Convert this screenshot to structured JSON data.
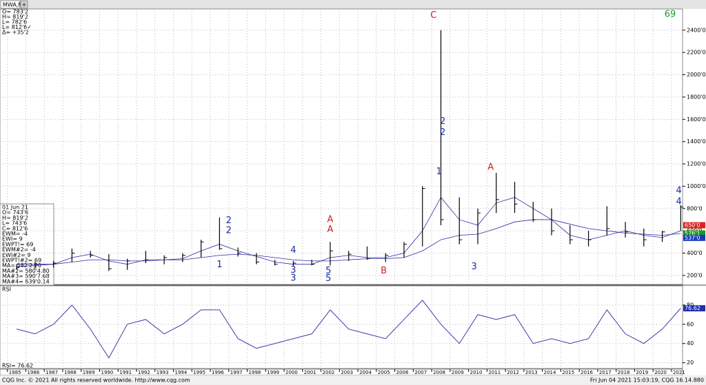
{
  "tab": "MWA,M",
  "quote_box": [
    "O=   783'2",
    "H=   819'2",
    "L=   782'6",
    "L=   812'6✓",
    "Δ=   +35'2"
  ],
  "study_box": [
    "01 Jun 21",
    "O=          743'6",
    "H=          819'2",
    "L=           743'6",
    "C=           812'6",
    "EWM=            -4",
    "EWI=              9",
    "EWPT!=          69",
    "EWM#2=          -4",
    "EWI#2=            9",
    "EWPT!#2=        69",
    "MA=        582'2.20",
    "MA#2=     580'4.80",
    "MA#3=     590'7.68",
    "MA#4=     639'0.14"
  ],
  "wave_count": "69",
  "footer_left": "CQG Inc. © 2021 All rights reserved worldwide. http://www.cqg.com",
  "footer_right": "Fri Jun 04 2021 15:03:19, CQG 16.14.880",
  "chart_data": [
    {
      "type": "ohlc",
      "x": [
        1985,
        1986,
        1987,
        1988,
        1989,
        1990,
        1991,
        1992,
        1993,
        1994,
        1995,
        1996,
        1997,
        1998,
        1999,
        2000,
        2001,
        2002,
        2003,
        2004,
        2005,
        2006,
        2007,
        2008,
        2009,
        2010,
        2011,
        2012,
        2013,
        2014,
        2015,
        2016,
        2017,
        2018,
        2019,
        2020,
        2021
      ],
      "high": [
        300,
        320,
        330,
        440,
        420,
        390,
        350,
        420,
        380,
        400,
        520,
        720,
        450,
        400,
        340,
        330,
        340,
        500,
        420,
        460,
        400,
        500,
        1000,
        2400,
        900,
        800,
        1120,
        1040,
        860,
        800,
        650,
        600,
        820,
        680,
        620,
        600,
        830
      ],
      "low": [
        250,
        260,
        270,
        320,
        360,
        240,
        250,
        310,
        300,
        320,
        360,
        430,
        370,
        300,
        290,
        280,
        290,
        290,
        330,
        340,
        320,
        360,
        460,
        650,
        480,
        480,
        760,
        760,
        680,
        560,
        480,
        460,
        560,
        540,
        460,
        500,
        600
      ],
      "close": [
        270,
        300,
        310,
        400,
        380,
        260,
        330,
        340,
        360,
        380,
        500,
        440,
        400,
        320,
        300,
        310,
        300,
        420,
        390,
        350,
        380,
        480,
        980,
        700,
        520,
        760,
        880,
        840,
        700,
        600,
        520,
        520,
        620,
        590,
        520,
        590,
        812.75
      ],
      "color": "#000000",
      "overlays": [
        {
          "color": "#2a2aa0",
          "values": [
            280,
            290,
            300,
            360,
            390,
            330,
            300,
            340,
            340,
            350,
            420,
            480,
            420,
            370,
            320,
            300,
            300,
            360,
            380,
            360,
            360,
            400,
            600,
            900,
            700,
            650,
            850,
            900,
            800,
            700,
            560,
            520,
            560,
            600,
            560,
            540,
            600
          ]
        },
        {
          "color": "#2a2aa0",
          "values": [
            300,
            300,
            300,
            320,
            340,
            340,
            330,
            330,
            340,
            340,
            360,
            380,
            390,
            380,
            360,
            340,
            330,
            330,
            340,
            350,
            350,
            360,
            420,
            520,
            560,
            570,
            620,
            680,
            700,
            700,
            660,
            620,
            600,
            580,
            570,
            560,
            576
          ]
        }
      ],
      "xlim": [
        1984.6,
        2021.6
      ],
      "ylim": [
        119,
        2590
      ],
      "yticks": [
        {
          "value": 200,
          "label": "200'0"
        },
        {
          "value": 400,
          "label": "400'0"
        },
        {
          "value": 600,
          "label": "600'0"
        },
        {
          "value": 800,
          "label": "800'0"
        },
        {
          "value": 1000,
          "label": "1000'0"
        },
        {
          "value": 1200,
          "label": "1200'0"
        },
        {
          "value": 1400,
          "label": "1400'0"
        },
        {
          "value": 1600,
          "label": "1600'0"
        },
        {
          "value": 1800,
          "label": "1800'0"
        },
        {
          "value": 2000,
          "label": "2000'0"
        },
        {
          "value": 2200,
          "label": "2200'0"
        },
        {
          "value": 2400,
          "label": "2400'0"
        }
      ],
      "price_markers": [
        {
          "value": 650,
          "label": "650'0",
          "color": "#e02020"
        },
        {
          "value": 576.125,
          "label": "576'1",
          "color": "#1a9a1a"
        },
        {
          "value": 537,
          "label": "537'0",
          "color": "#1a3ab8"
        }
      ],
      "annotations": [
        {
          "text": "C",
          "x": 2008.1,
          "y": 2530,
          "color": "#d02020"
        },
        {
          "text": "2",
          "x": 2008.6,
          "y": 1580,
          "color": "#1a2aa0"
        },
        {
          "text": "2",
          "x": 2008.6,
          "y": 1480,
          "color": "#1a2aa0"
        },
        {
          "text": "1",
          "x": 2008.4,
          "y": 1130,
          "color": "#1a2aa0"
        },
        {
          "text": "A",
          "x": 2011.2,
          "y": 1170,
          "color": "#d02020"
        },
        {
          "text": "2",
          "x": 1997.0,
          "y": 690,
          "color": "#1a2aa0"
        },
        {
          "text": "2",
          "x": 1997.0,
          "y": 600,
          "color": "#1a2aa0"
        },
        {
          "text": "1",
          "x": 1996.5,
          "y": 295,
          "color": "#1a2aa0"
        },
        {
          "text": "4",
          "x": 2000.5,
          "y": 425,
          "color": "#1a2aa0"
        },
        {
          "text": "3",
          "x": 2000.5,
          "y": 245,
          "color": "#1a2aa0"
        },
        {
          "text": "3",
          "x": 2000.5,
          "y": 175,
          "color": "#1a2aa0"
        },
        {
          "text": "A",
          "x": 2002.5,
          "y": 700,
          "color": "#d02020"
        },
        {
          "text": "A",
          "x": 2002.5,
          "y": 610,
          "color": "#d02020"
        },
        {
          "text": "5",
          "x": 2002.4,
          "y": 240,
          "color": "#1a2aa0"
        },
        {
          "text": "5",
          "x": 2002.4,
          "y": 170,
          "color": "#1a2aa0"
        },
        {
          "text": "B",
          "x": 2005.4,
          "y": 240,
          "color": "#d02020"
        },
        {
          "text": "3",
          "x": 2010.3,
          "y": 275,
          "color": "#1a2aa0"
        },
        {
          "text": "4",
          "x": 2021.4,
          "y": 960,
          "color": "#1a2aa0"
        },
        {
          "text": "4",
          "x": 2021.4,
          "y": 860,
          "color": "#1a2aa0"
        }
      ]
    },
    {
      "type": "line",
      "title": "RSI",
      "value_text": "RSI=    76.62",
      "x": [
        1985,
        1986,
        1987,
        1988,
        1989,
        1990,
        1991,
        1992,
        1993,
        1994,
        1995,
        1996,
        1997,
        1998,
        1999,
        2000,
        2001,
        2002,
        2003,
        2004,
        2005,
        2006,
        2007,
        2008,
        2009,
        2010,
        2011,
        2012,
        2013,
        2014,
        2015,
        2016,
        2017,
        2018,
        2019,
        2020,
        2021
      ],
      "values": [
        55,
        50,
        60,
        80,
        55,
        25,
        60,
        65,
        50,
        60,
        75,
        75,
        45,
        35,
        40,
        45,
        50,
        75,
        55,
        50,
        45,
        65,
        85,
        60,
        40,
        70,
        65,
        70,
        40,
        45,
        40,
        45,
        75,
        50,
        40,
        55,
        76.62
      ],
      "color": "#3a3aa8",
      "current": {
        "value": 76.62,
        "label": "76.62"
      },
      "xlim": [
        1984.6,
        2021.6
      ],
      "ylim": [
        14,
        100
      ],
      "yticks": [
        20,
        40,
        60,
        80
      ],
      "xticks": [
        1985,
        1986,
        1987,
        1988,
        1989,
        1990,
        1991,
        1992,
        1993,
        1994,
        1995,
        1996,
        1997,
        1998,
        1999,
        2000,
        2001,
        2002,
        2003,
        2004,
        2005,
        2006,
        2007,
        2008,
        2009,
        2010,
        2011,
        2012,
        2013,
        2014,
        2015,
        2016,
        2017,
        2018,
        2019,
        2020,
        2021
      ]
    }
  ]
}
